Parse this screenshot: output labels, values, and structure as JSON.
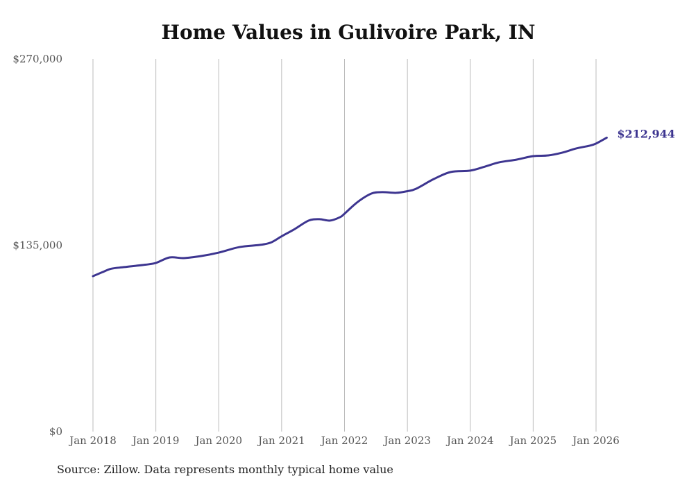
{
  "chart_data": {
    "type": "line",
    "title": "Home Values in Gulivoire Park, IN",
    "source": "Source: Zillow. Data represents monthly typical home value",
    "xlabel": "",
    "ylabel": "",
    "ylim": [
      0,
      270000
    ],
    "xlim": [
      2018.0,
      2026.0
    ],
    "y_ticks": [
      {
        "value": 0,
        "label": "$0"
      },
      {
        "value": 135000,
        "label": "$135,000"
      },
      {
        "value": 270000,
        "label": "$270,000"
      }
    ],
    "x_ticks": [
      {
        "value": 2018,
        "label": "Jan 2018"
      },
      {
        "value": 2019,
        "label": "Jan 2019"
      },
      {
        "value": 2020,
        "label": "Jan 2020"
      },
      {
        "value": 2021,
        "label": "Jan 2021"
      },
      {
        "value": 2022,
        "label": "Jan 2022"
      },
      {
        "value": 2023,
        "label": "Jan 2023"
      },
      {
        "value": 2024,
        "label": "Jan 2024"
      },
      {
        "value": 2025,
        "label": "Jan 2025"
      },
      {
        "value": 2026,
        "label": "Jan 2026"
      }
    ],
    "grid": "vertical",
    "line_color": "#3d3590",
    "end_label": "$212,944",
    "series": [
      {
        "name": "Typical home value",
        "x": [
          2018.0,
          2018.15,
          2018.29,
          2018.5,
          2018.83,
          2019.0,
          2019.22,
          2019.44,
          2019.72,
          2020.0,
          2020.33,
          2020.66,
          2020.83,
          2021.0,
          2021.21,
          2021.43,
          2021.6,
          2021.77,
          2021.93,
          2022.0,
          2022.21,
          2022.43,
          2022.6,
          2022.82,
          2023.0,
          2023.14,
          2023.42,
          2023.69,
          2024.0,
          2024.24,
          2024.46,
          2024.74,
          2025.0,
          2025.24,
          2025.46,
          2025.68,
          2025.9,
          2026.0,
          2026.17
        ],
        "y": [
          112600,
          115500,
          118000,
          119200,
          120900,
          122200,
          126200,
          125700,
          127200,
          129700,
          133700,
          135300,
          137000,
          141500,
          146800,
          152900,
          153900,
          152900,
          155400,
          157900,
          166400,
          172500,
          173500,
          173000,
          174200,
          176000,
          183000,
          188100,
          189100,
          192100,
          195100,
          197100,
          199600,
          200100,
          202100,
          205100,
          207200,
          208700,
          212944
        ]
      }
    ]
  }
}
